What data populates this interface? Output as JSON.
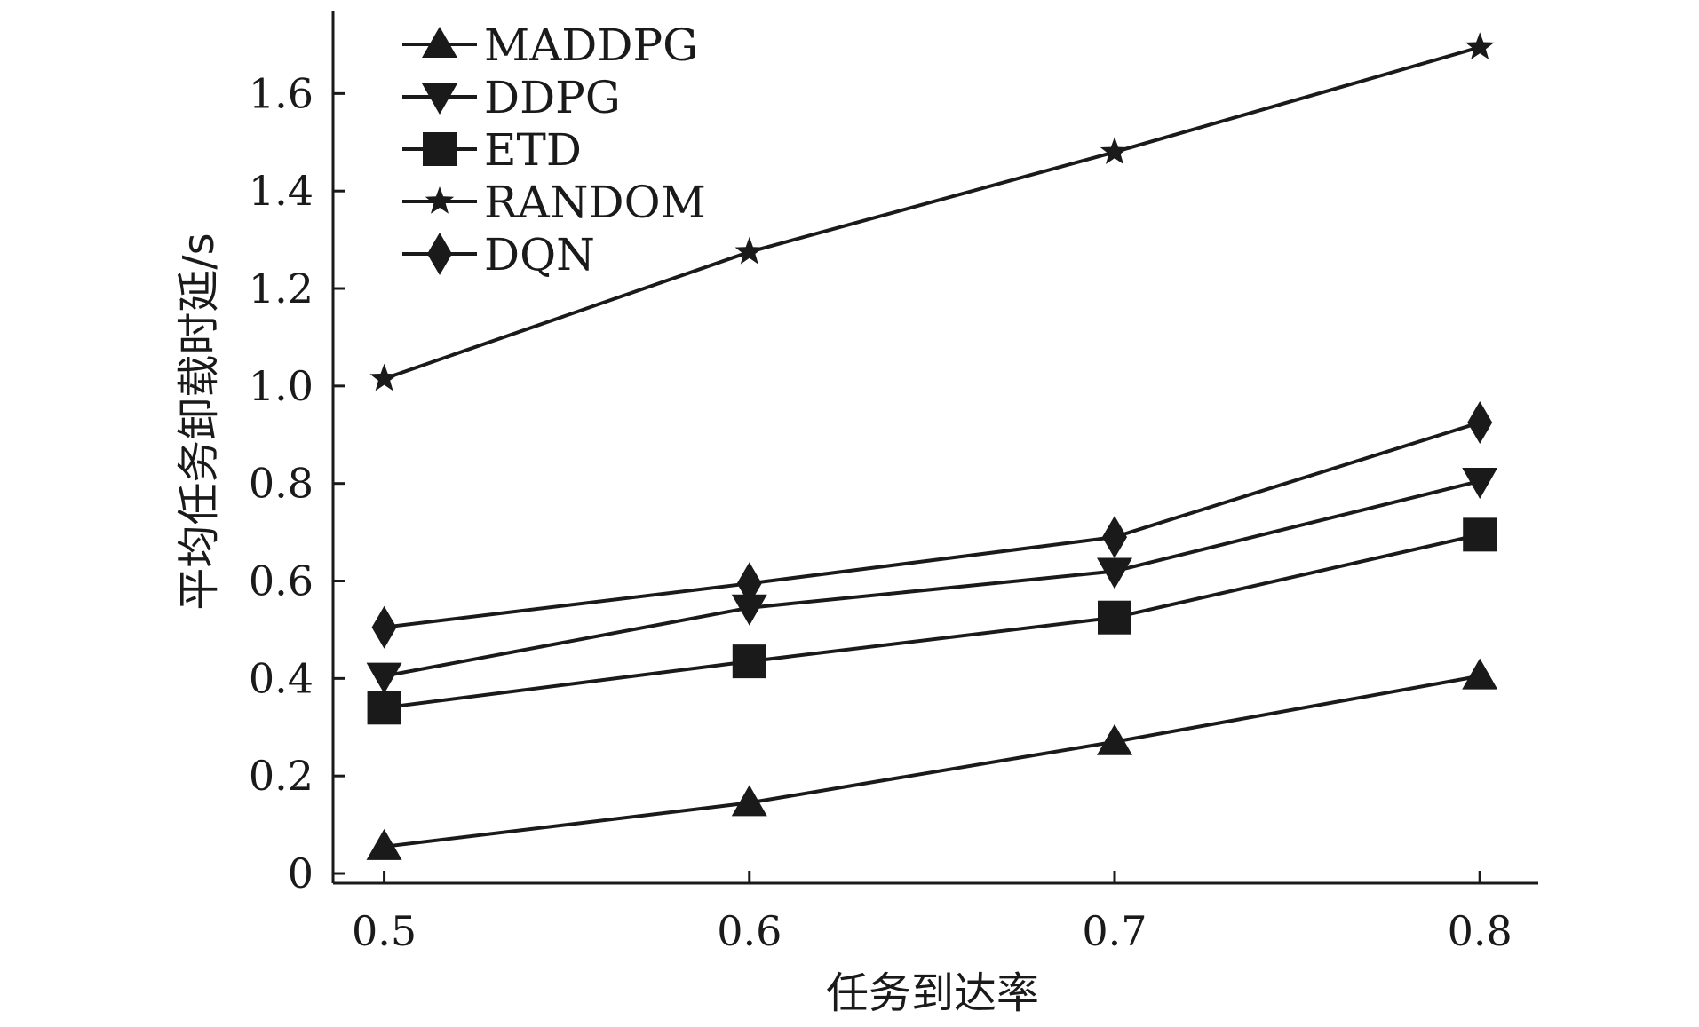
{
  "chart_data": {
    "type": "line",
    "title": "",
    "xlabel": "任务到达率",
    "ylabel": "平均任务卸载时延/s",
    "x": [
      0.5,
      0.6,
      0.7,
      0.8
    ],
    "x_ticks": [
      "0.5",
      "0.6",
      "0.7",
      "0.8"
    ],
    "y_ticks": [
      "0",
      "0.2",
      "0.4",
      "0.6",
      "0.8",
      "1.0",
      "1.2",
      "1.4",
      "1.6"
    ],
    "xlim": [
      0.486,
      0.816
    ],
    "ylim": [
      -0.02,
      1.77
    ],
    "grid": false,
    "legend_position": "top-left",
    "line_color": "#1a1a1a",
    "series": [
      {
        "name": "MADDPG",
        "marker": "triangle-up",
        "values": [
          0.055,
          0.145,
          0.27,
          0.405
        ]
      },
      {
        "name": "DDPG",
        "marker": "triangle-down",
        "values": [
          0.405,
          0.545,
          0.62,
          0.805
        ]
      },
      {
        "name": "ETD",
        "marker": "square",
        "values": [
          0.34,
          0.435,
          0.525,
          0.695
        ]
      },
      {
        "name": "RANDOM",
        "marker": "star",
        "values": [
          1.015,
          1.275,
          1.48,
          1.695
        ]
      },
      {
        "name": "DQN",
        "marker": "diamond",
        "values": [
          0.505,
          0.595,
          0.69,
          0.925
        ]
      }
    ]
  }
}
